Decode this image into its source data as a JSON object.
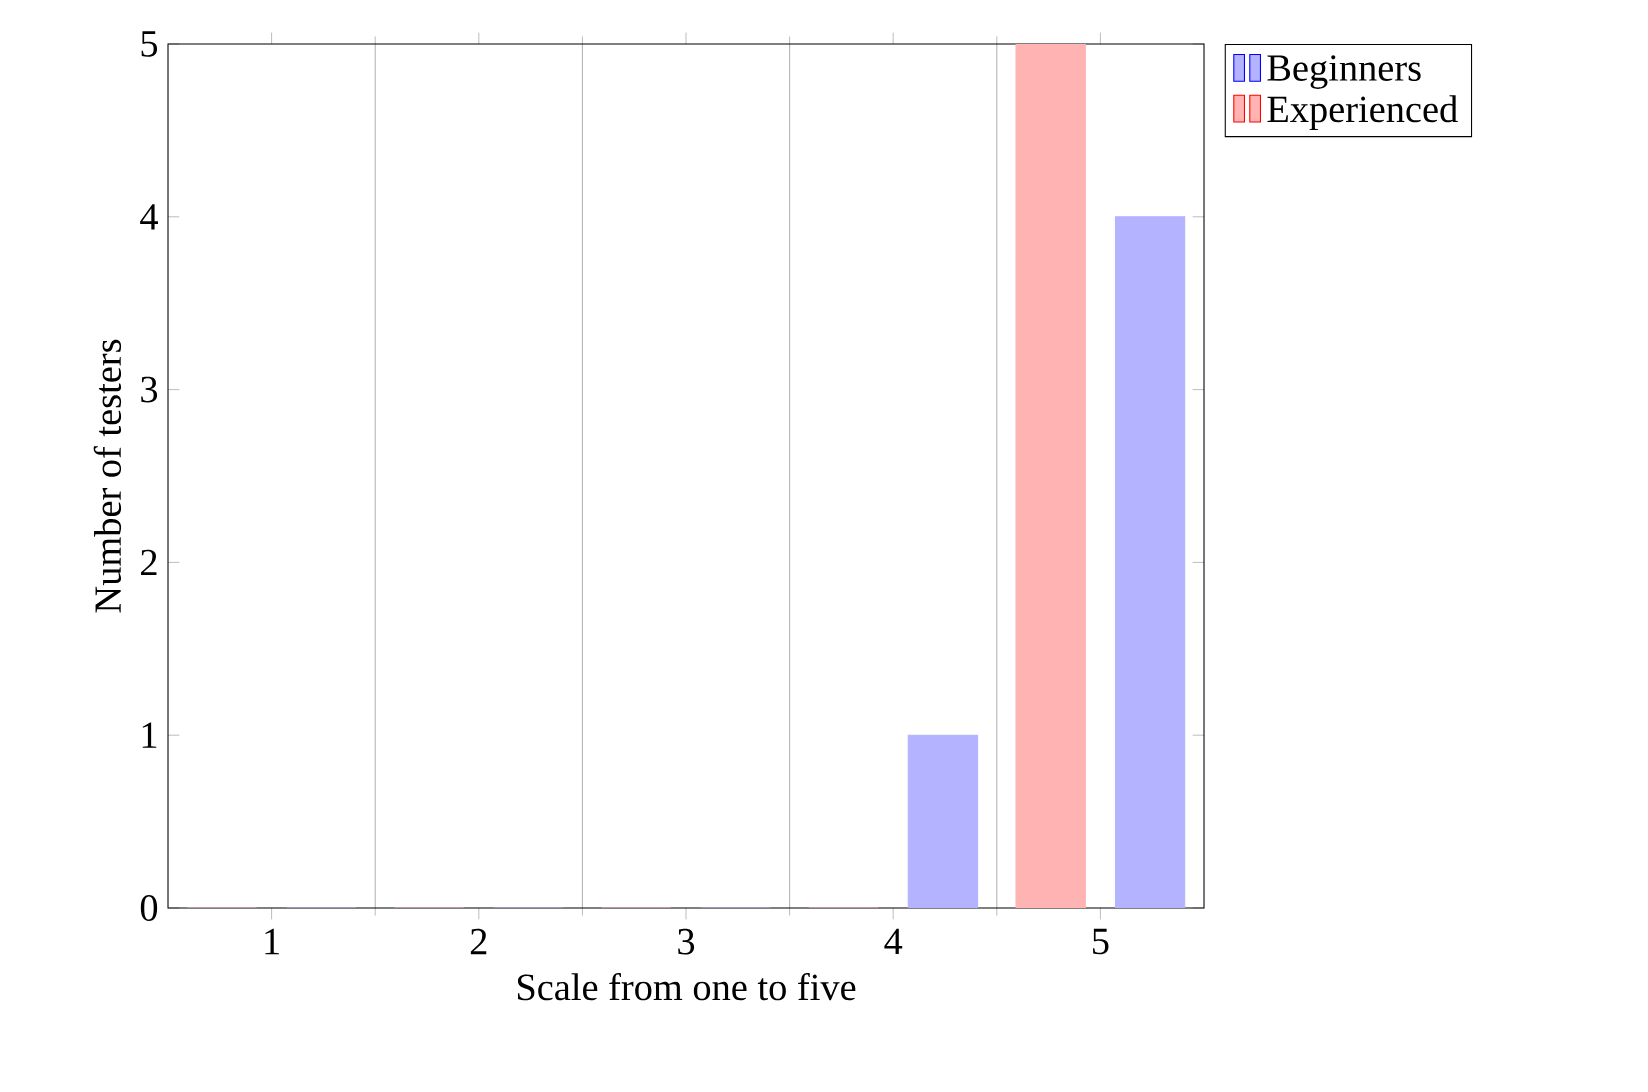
{
  "chart_data": {
    "type": "bar",
    "xlabel": "Scale from one to five",
    "ylabel": "Number of testers",
    "categories": [
      "1",
      "2",
      "3",
      "4",
      "5"
    ],
    "series": [
      {
        "name": "Beginners",
        "color": "#b3b3ff",
        "values": [
          0,
          0,
          0,
          1,
          4
        ]
      },
      {
        "name": "Experienced",
        "color": "#ffb3b3",
        "values": [
          0,
          0,
          0,
          0,
          5
        ]
      }
    ],
    "ylim": [
      0,
      5
    ],
    "yticks": [
      0,
      1,
      2,
      3,
      4,
      5
    ],
    "grid": "x",
    "legend": "top right"
  }
}
